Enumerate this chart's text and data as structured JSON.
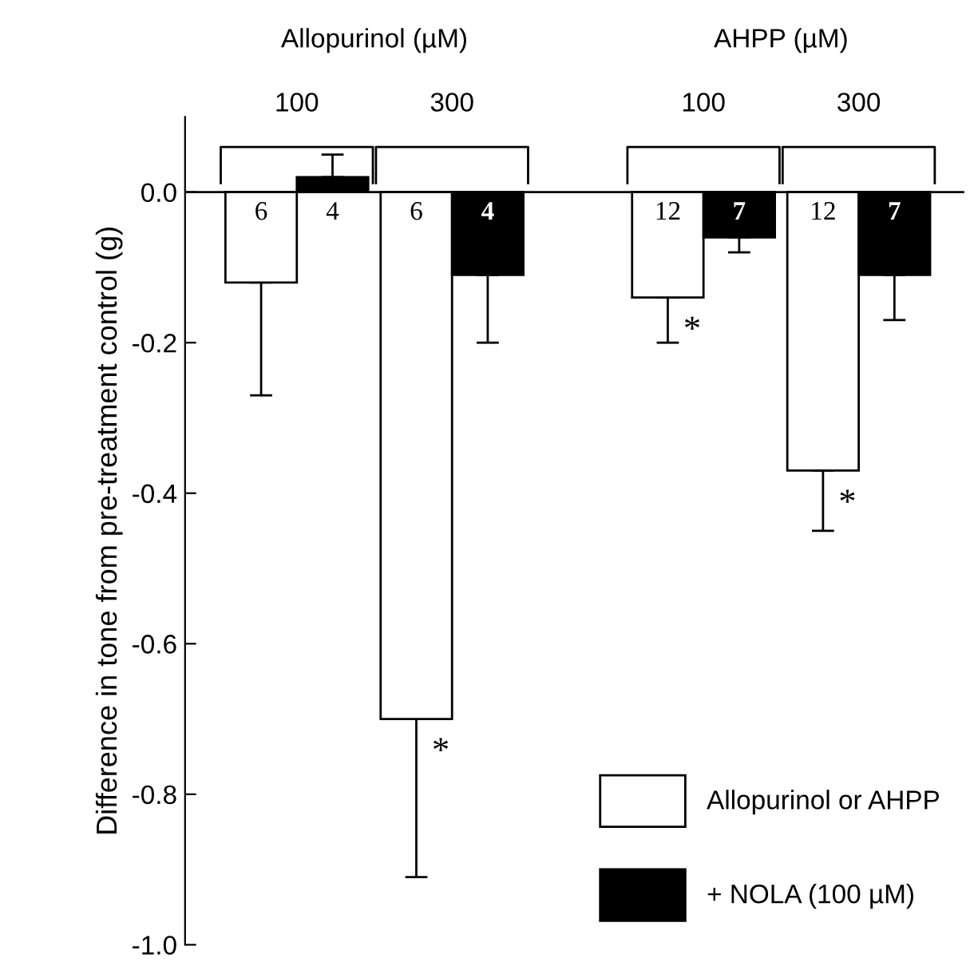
{
  "chart_data": {
    "type": "bar",
    "ylabel": "Difference in tone from pre-treatment control (g)",
    "categories": [
      "100",
      "300",
      "100",
      "300"
    ],
    "series": [
      {
        "name": "Allopurinol or AHPP",
        "color": "#ffffff",
        "values": [
          -0.12,
          -0.7,
          -0.14,
          -0.37
        ],
        "errors": [
          [
            -0.27,
            -0.12
          ],
          [
            -0.91,
            -0.7
          ],
          [
            -0.2,
            -0.14
          ],
          [
            -0.45,
            -0.37
          ]
        ]
      },
      {
        "name": "+ NOLA (100 µM)",
        "color": "#000000",
        "values": [
          0.02,
          -0.11,
          -0.06,
          -0.11
        ],
        "errors": [
          [
            0.02,
            0.05
          ],
          [
            -0.2,
            -0.11
          ],
          [
            -0.08,
            -0.06
          ],
          [
            -0.17,
            -0.11
          ]
        ]
      }
    ],
    "ylim": [
      -1.0,
      0.1
    ],
    "yticks": [
      {
        "value": 0,
        "label": "0.0"
      },
      {
        "value": -0.2,
        "label": "-0.2"
      },
      {
        "value": -0.4,
        "label": "-0.4"
      },
      {
        "value": -0.6,
        "label": "-0.6"
      },
      {
        "value": -0.8,
        "label": "-0.8"
      },
      {
        "value": -1.0,
        "label": "-1.0"
      }
    ],
    "ref_lines": [
      {
        "axis": "y",
        "value": 0,
        "label": null
      }
    ],
    "tick_labels": "y",
    "legend": "bottom right",
    "grid": false,
    "annotations": [
      "Allopurinol (µM)",
      "AHPP (µM)",
      "6",
      "4",
      "6",
      "4",
      "12",
      "7",
      "12",
      "7",
      "*",
      "*",
      "*"
    ]
  }
}
